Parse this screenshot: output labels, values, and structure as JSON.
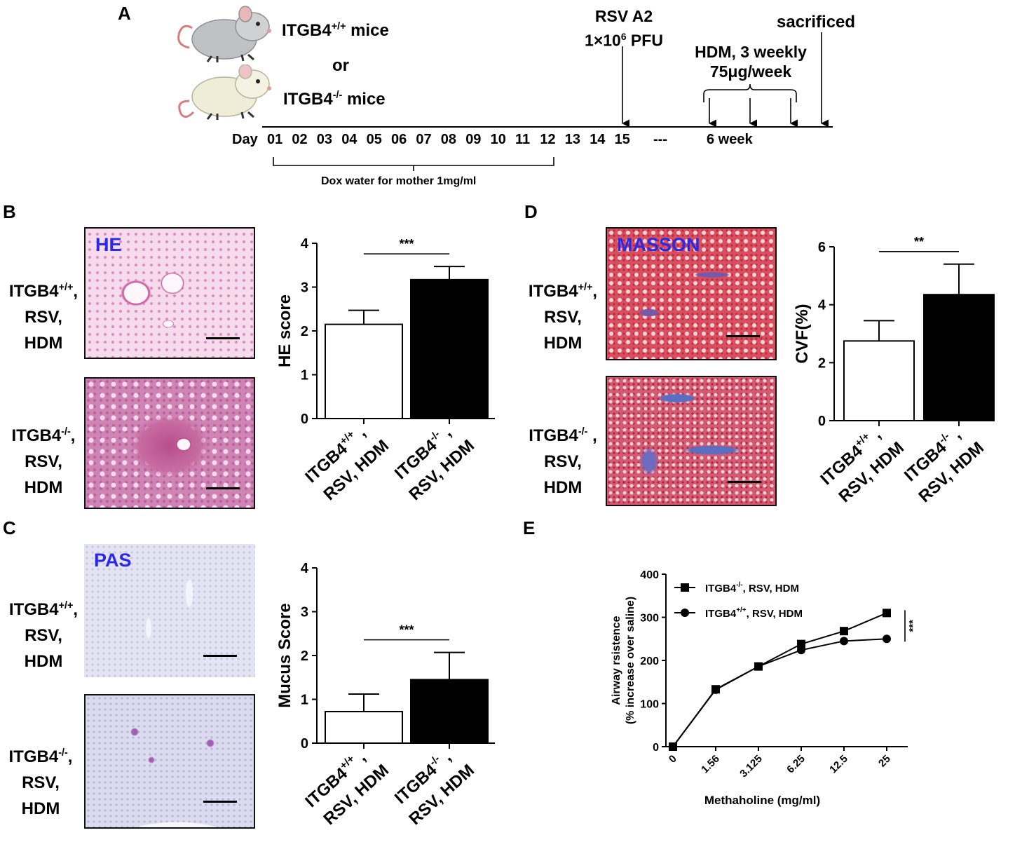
{
  "panelA": {
    "label": "A",
    "wt_mice": "ITGB4",
    "wt_sup": "+/+",
    "wt_suffix": " mice",
    "or": "or",
    "ko_mice": "ITGB4",
    "ko_sup": "-/-",
    "ko_suffix": " mice",
    "day_label": "Day",
    "days": [
      "01",
      "02",
      "03",
      "04",
      "05",
      "06",
      "07",
      "08",
      "09",
      "10",
      "11",
      "12",
      "13",
      "14",
      "15"
    ],
    "ellipsis": "---",
    "week": "6 week",
    "rsv_line1": "RSV A2",
    "rsv_line2_pre": "1×10",
    "rsv_line2_sup": "6",
    "rsv_line2_post": " PFU",
    "hdm_line1": "HDM, 3 weekly",
    "hdm_line2": "75μg/week",
    "sacrificed": "sacrificed",
    "dox": "Dox water for mother 1mg/ml"
  },
  "rows": {
    "wt_l1_pre": "ITGB4",
    "wt_l1_sup": "+/+",
    "wt_l1_post": ",",
    "ko_l1_pre": "ITGB4",
    "ko_l1_sup": "-/-",
    "ko_l1_post": ",",
    "ko_l1_post_d": " ,",
    "l2": "RSV,",
    "l3": "HDM"
  },
  "stains": {
    "he": "HE",
    "masson": "MASSON",
    "pas": "PAS"
  },
  "panel_labels": {
    "b": "B",
    "c": "C",
    "d": "D",
    "e": "E"
  },
  "chart_data": [
    {
      "panel": "B",
      "type": "bar",
      "ylabel": "HE score",
      "ylim": [
        0,
        4
      ],
      "yticks": [
        "0",
        "1",
        "2",
        "3",
        "4"
      ],
      "categories": [
        {
          "line1": "ITGB4",
          "sup": "+/+",
          "comma": " ,",
          "line2": "RSV, HDM"
        },
        {
          "line1": "ITGB4",
          "sup": "-/-",
          "comma": " ,",
          "line2": "RSV, HDM"
        }
      ],
      "values": [
        2.15,
        3.17
      ],
      "errors": [
        0.32,
        0.3
      ],
      "colors": [
        "#ffffff",
        "#000000"
      ],
      "significance": "***"
    },
    {
      "panel": "C",
      "type": "bar",
      "ylabel": "Mucus Score",
      "ylim": [
        0,
        4
      ],
      "yticks": [
        "0",
        "1",
        "2",
        "3",
        "4"
      ],
      "categories": [
        {
          "line1": "ITGB4",
          "sup": "+/+",
          "comma": " ,",
          "line2": "RSV, HDM"
        },
        {
          "line1": "ITGB4",
          "sup": "-/-",
          "comma": " ,",
          "line2": "RSV, HDM"
        }
      ],
      "values": [
        0.72,
        1.45
      ],
      "errors": [
        0.4,
        0.62
      ],
      "colors": [
        "#ffffff",
        "#000000"
      ],
      "significance": "***"
    },
    {
      "panel": "D",
      "type": "bar",
      "ylabel": "CVF(%)",
      "ylim": [
        0,
        6
      ],
      "yticks": [
        "0",
        "2",
        "4",
        "6"
      ],
      "categories": [
        {
          "line1": "ITGB4",
          "sup": "+/+",
          "comma": " ,",
          "line2": "RSV, HDM"
        },
        {
          "line1": "ITGB4",
          "sup": "-/-",
          "comma": " ,",
          "line2": "RSV, HDM"
        }
      ],
      "values": [
        2.75,
        4.35
      ],
      "errors": [
        0.7,
        1.05
      ],
      "colors": [
        "#ffffff",
        "#000000"
      ],
      "significance": "**"
    },
    {
      "panel": "E",
      "type": "line",
      "xlabel": "Methaholine (mg/ml)",
      "ylabel_line1": "Airway rsistence",
      "ylabel_line2": "(% increase over saline)",
      "ylim": [
        0,
        400
      ],
      "yticks": [
        "0",
        "100",
        "200",
        "300",
        "400"
      ],
      "categories": [
        "0",
        "1.56",
        "3.125",
        "6.25",
        "12.5",
        "25"
      ],
      "series": [
        {
          "name_pre": "ITGB4",
          "name_sup": "-/-",
          "name_post": ", RSV, HDM",
          "marker": "square",
          "values": [
            0,
            133,
            186,
            238,
            268,
            310
          ],
          "errors": [
            3,
            4,
            5,
            5,
            7,
            8
          ]
        },
        {
          "name_pre": "ITGB4",
          "name_sup": "+/+",
          "name_post": ", RSV, HDM",
          "marker": "circle",
          "values": [
            0,
            132,
            186,
            224,
            245,
            250
          ],
          "errors": [
            3,
            4,
            5,
            5,
            6,
            9
          ]
        }
      ],
      "significance": "***"
    }
  ]
}
